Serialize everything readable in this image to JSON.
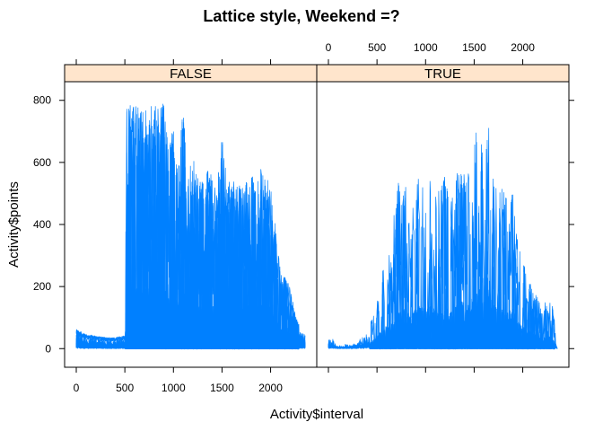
{
  "chart_data": {
    "type": "line",
    "title": "Lattice style, Weekend =?",
    "xlabel": "Activity$interval",
    "ylabel": "Activity$points",
    "xlim": [
      -120,
      2475
    ],
    "ylim": [
      -60,
      860
    ],
    "x_ticks": [
      0,
      500,
      1000,
      1500,
      2000
    ],
    "y_ticks": [
      0,
      200,
      400,
      600,
      800
    ],
    "grid": false,
    "panels": [
      {
        "strip": "FALSE",
        "envelope": {
          "x": [
            0,
            100,
            200,
            300,
            400,
            500,
            520,
            560,
            600,
            650,
            700,
            750,
            800,
            830,
            870,
            900,
            950,
            1000,
            1050,
            1100,
            1150,
            1200,
            1250,
            1300,
            1350,
            1400,
            1450,
            1500,
            1550,
            1600,
            1650,
            1700,
            1750,
            1800,
            1850,
            1900,
            1950,
            2000,
            2050,
            2100,
            2150,
            2200,
            2250,
            2300,
            2355
          ],
          "y": [
            70,
            50,
            45,
            40,
            40,
            45,
            780,
            800,
            790,
            780,
            760,
            790,
            780,
            790,
            800,
            790,
            650,
            720,
            600,
            780,
            560,
            620,
            550,
            540,
            580,
            560,
            500,
            740,
            520,
            560,
            540,
            520,
            540,
            600,
            520,
            580,
            540,
            550,
            400,
            260,
            230,
            200,
            120,
            70,
            60
          ]
        }
      },
      {
        "strip": "TRUE",
        "envelope": {
          "x": [
            0,
            50,
            100,
            200,
            300,
            400,
            500,
            550,
            600,
            650,
            700,
            750,
            800,
            850,
            900,
            950,
            1000,
            1050,
            1100,
            1150,
            1200,
            1250,
            1300,
            1350,
            1400,
            1450,
            1500,
            1550,
            1600,
            1650,
            1700,
            1750,
            1800,
            1850,
            1900,
            1950,
            2000,
            2050,
            2100,
            2150,
            2200,
            2250,
            2300,
            2355
          ],
          "y": [
            50,
            40,
            15,
            20,
            35,
            60,
            150,
            250,
            300,
            330,
            550,
            540,
            520,
            400,
            540,
            560,
            500,
            560,
            500,
            520,
            560,
            460,
            520,
            620,
            600,
            560,
            780,
            790,
            600,
            760,
            560,
            540,
            550,
            500,
            520,
            350,
            300,
            240,
            200,
            180,
            130,
            180,
            180,
            0
          ]
        }
      }
    ]
  }
}
